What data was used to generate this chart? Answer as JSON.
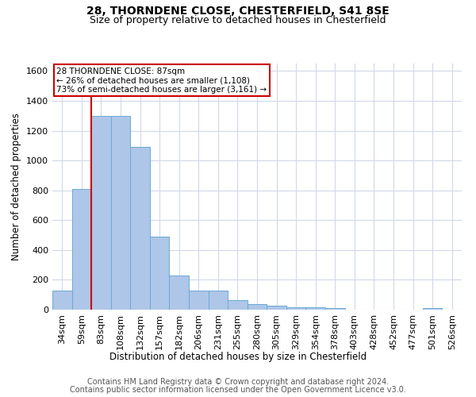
{
  "title": "28, THORNDENE CLOSE, CHESTERFIELD, S41 8SE",
  "subtitle": "Size of property relative to detached houses in Chesterfield",
  "xlabel": "Distribution of detached houses by size in Chesterfield",
  "ylabel": "Number of detached properties",
  "footer1": "Contains HM Land Registry data © Crown copyright and database right 2024.",
  "footer2": "Contains public sector information licensed under the Open Government Licence v3.0.",
  "categories": [
    "34sqm",
    "59sqm",
    "83sqm",
    "108sqm",
    "132sqm",
    "157sqm",
    "182sqm",
    "206sqm",
    "231sqm",
    "255sqm",
    "280sqm",
    "305sqm",
    "329sqm",
    "354sqm",
    "378sqm",
    "403sqm",
    "428sqm",
    "452sqm",
    "477sqm",
    "501sqm",
    "526sqm"
  ],
  "values": [
    130,
    810,
    1300,
    1300,
    1090,
    490,
    230,
    130,
    130,
    65,
    35,
    25,
    15,
    15,
    12,
    0,
    0,
    0,
    0,
    12,
    0
  ],
  "bar_color": "#aec6e8",
  "bar_edge_color": "#6aaad4",
  "grid_color": "#d0d8e8",
  "vline_color": "#cc0000",
  "vline_x_index": 2,
  "annotation_text": "28 THORNDENE CLOSE: 87sqm\n← 26% of detached houses are smaller (1,108)\n73% of semi-detached houses are larger (3,161) →",
  "annotation_box_color": "#ffffff",
  "annotation_box_edge": "#cc0000",
  "ylim": [
    0,
    1650
  ],
  "yticks": [
    0,
    200,
    400,
    600,
    800,
    1000,
    1200,
    1400,
    1600
  ],
  "title_fontsize": 10,
  "subtitle_fontsize": 9,
  "axis_fontsize": 8.5,
  "tick_fontsize": 8,
  "footer_fontsize": 7,
  "background_color": "#ffffff"
}
